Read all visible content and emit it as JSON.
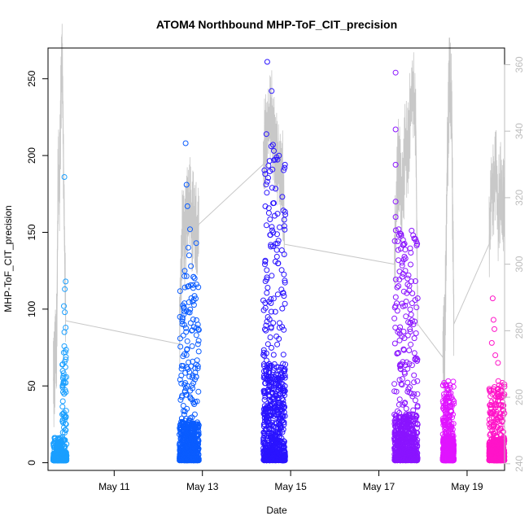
{
  "chart_data": {
    "type": "scatter",
    "title": "ATOM4 Northbound MHP-ToF_CIT_precision",
    "xlabel": "Date",
    "ylabel": "MHP-ToF_CIT_precision",
    "x_axis": {
      "range_days": [
        9.5,
        19.85
      ],
      "ticks": [
        {
          "day": 11,
          "label": "May 11"
        },
        {
          "day": 13,
          "label": "May 13"
        },
        {
          "day": 15,
          "label": "May 15"
        },
        {
          "day": 17,
          "label": "May 17"
        },
        {
          "day": 19,
          "label": "May 19"
        }
      ]
    },
    "y_left": {
      "range": [
        -5,
        270
      ],
      "ticks": [
        0,
        50,
        100,
        150,
        200,
        250
      ]
    },
    "y_right": {
      "range": [
        238,
        365
      ],
      "ticks": [
        240,
        260,
        280,
        300,
        320,
        340,
        360
      ],
      "color": "#bdbdbd"
    },
    "line_color": "#c8c8c8",
    "clusters": [
      {
        "start": 9.62,
        "end": 9.92,
        "color": "#1a9fff",
        "base_max": 15,
        "spike_start": 9.82,
        "spike_max": 75,
        "outliers": [
          [
            9.87,
            186
          ],
          [
            9.9,
            118
          ],
          [
            9.88,
            113
          ],
          [
            9.86,
            102
          ],
          [
            9.88,
            98
          ],
          [
            9.9,
            88
          ],
          [
            9.87,
            85
          ]
        ]
      },
      {
        "start": 12.48,
        "end": 12.92,
        "color": "#0a5cff",
        "base_max": 72,
        "spike_start": 12.48,
        "spike_max": 120,
        "outliers": [
          [
            12.62,
            208
          ],
          [
            12.64,
            181
          ],
          [
            12.66,
            167
          ],
          [
            12.72,
            152
          ],
          [
            12.86,
            143
          ],
          [
            12.68,
            140
          ],
          [
            12.7,
            135
          ],
          [
            12.74,
            128
          ],
          [
            12.6,
            125
          ],
          [
            12.8,
            121
          ]
        ]
      },
      {
        "start": 14.38,
        "end": 14.88,
        "color": "#2a14ff",
        "base_max": 180,
        "spike_start": 14.38,
        "spike_max": 200,
        "outliers": [
          [
            14.47,
            261
          ],
          [
            14.57,
            242
          ],
          [
            14.45,
            214
          ],
          [
            14.6,
            207
          ],
          [
            14.56,
            206
          ],
          [
            14.62,
            203
          ],
          [
            14.62,
            197
          ],
          [
            14.47,
            183
          ],
          [
            14.58,
            179
          ]
        ]
      },
      {
        "start": 17.35,
        "end": 17.88,
        "color": "#8a14ff",
        "base_max": 85,
        "spike_start": 17.35,
        "spike_max": 150,
        "outliers": [
          [
            17.38,
            254
          ],
          [
            17.38,
            217
          ],
          [
            17.38,
            194
          ],
          [
            17.38,
            170
          ],
          [
            17.38,
            160
          ],
          [
            17.45,
            152
          ],
          [
            17.55,
            145
          ],
          [
            17.6,
            125
          ],
          [
            17.65,
            120
          ]
        ]
      },
      {
        "start": 18.45,
        "end": 18.7,
        "color": "#e014ff",
        "base_max": 42,
        "spike_start": 18.45,
        "spike_max": 52,
        "outliers": [
          [
            18.48,
            52
          ],
          [
            18.52,
            50
          ],
          [
            18.6,
            42
          ],
          [
            18.66,
            38
          ]
        ]
      },
      {
        "start": 19.5,
        "end": 19.85,
        "color": "#ff14c8",
        "base_max": 40,
        "spike_start": 19.5,
        "spike_max": 52,
        "outliers": [
          [
            19.58,
            107
          ],
          [
            19.6,
            93
          ],
          [
            19.62,
            87
          ],
          [
            19.56,
            78
          ],
          [
            19.64,
            70
          ],
          [
            19.7,
            65
          ],
          [
            19.8,
            52
          ],
          [
            19.76,
            47
          ]
        ]
      }
    ],
    "line_series": {
      "axis": "right",
      "segments": [
        {
          "x": [
            9.62,
            9.7,
            9.73,
            9.76,
            9.78,
            9.8,
            9.82,
            9.84,
            9.86,
            9.88,
            9.9
          ],
          "y": [
            265,
            278,
            330,
            320,
            340,
            355,
            360,
            345,
            320,
            300,
            283
          ]
        },
        {
          "x": [
            9.9,
            12.48
          ],
          "y": [
            283,
            276
          ]
        },
        {
          "x": [
            12.48,
            12.52,
            12.56,
            12.6,
            12.64,
            12.68,
            12.72,
            12.76,
            12.8,
            12.84,
            12.88,
            12.92
          ],
          "y": [
            276,
            300,
            312,
            306,
            316,
            313,
            318,
            310,
            314,
            311,
            308,
            312
          ]
        },
        {
          "x": [
            12.92,
            14.38
          ],
          "y": [
            312,
            330
          ]
        },
        {
          "x": [
            14.38,
            14.42,
            14.46,
            14.5,
            14.54,
            14.58,
            14.62,
            14.66,
            14.7,
            14.74,
            14.78,
            14.82,
            14.86
          ],
          "y": [
            330,
            336,
            340,
            342,
            344,
            343,
            340,
            336,
            330,
            328,
            326,
            325,
            306
          ]
        },
        {
          "x": [
            14.86,
            17.35
          ],
          "y": [
            306,
            300
          ]
        },
        {
          "x": [
            17.35,
            17.4,
            17.45,
            17.5,
            17.55,
            17.6,
            17.65,
            17.7,
            17.75,
            17.8,
            17.84,
            17.88
          ],
          "y": [
            300,
            318,
            330,
            322,
            320,
            336,
            332,
            344,
            352,
            348,
            340,
            282
          ]
        },
        {
          "x": [
            17.88,
            18.45
          ],
          "y": [
            282,
            272
          ]
        },
        {
          "x": [
            18.45,
            18.5,
            18.55,
            18.6,
            18.65,
            18.7
          ],
          "y": [
            272,
            280,
            330,
            356,
            346,
            282
          ]
        },
        {
          "x": [
            18.7,
            19.5
          ],
          "y": [
            282,
            306
          ]
        },
        {
          "x": [
            19.5,
            19.55,
            19.6,
            19.65,
            19.7,
            19.75,
            19.8,
            19.85
          ],
          "y": [
            306,
            325,
            320,
            330,
            315,
            322,
            318,
            316
          ]
        }
      ]
    }
  }
}
